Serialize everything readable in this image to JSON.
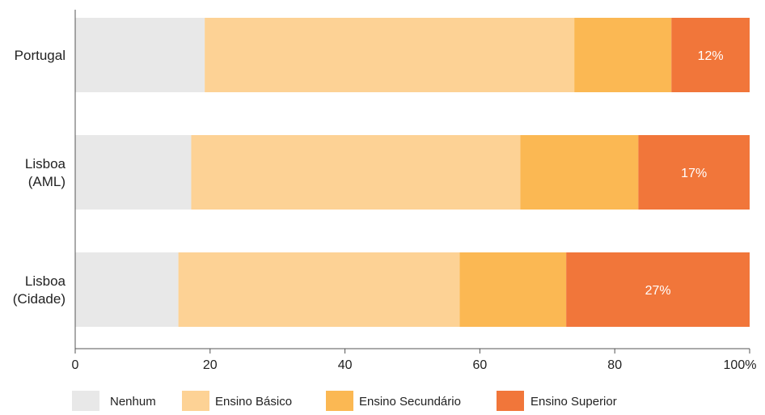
{
  "chart_data": {
    "type": "bar",
    "orientation": "horizontal",
    "stacked": true,
    "categories": [
      [
        "Portugal"
      ],
      [
        "Lisboa",
        "(AML)"
      ],
      [
        "Lisboa",
        "(Cidade)"
      ]
    ],
    "series": [
      {
        "name": "Nenhum",
        "color": "#e8e8e8",
        "values": [
          19.2,
          17.2,
          15.3
        ]
      },
      {
        "name": "Ensino Básico",
        "color": "#fdd295",
        "values": [
          54.8,
          48.8,
          41.7
        ]
      },
      {
        "name": "Ensino Secundário",
        "color": "#fbb853",
        "values": [
          14.4,
          17.5,
          15.8
        ]
      },
      {
        "name": "Ensino Superior",
        "color": "#f1763a",
        "values": [
          11.6,
          16.5,
          27.2
        ]
      }
    ],
    "data_labels": {
      "series": "Ensino Superior",
      "values": [
        "12%",
        "17%",
        "27%"
      ]
    },
    "xticks": [
      "0",
      "20",
      "40",
      "60",
      "80",
      "100%"
    ],
    "xlim": [
      0,
      100
    ],
    "grid": false,
    "legend_position": "bottom"
  }
}
